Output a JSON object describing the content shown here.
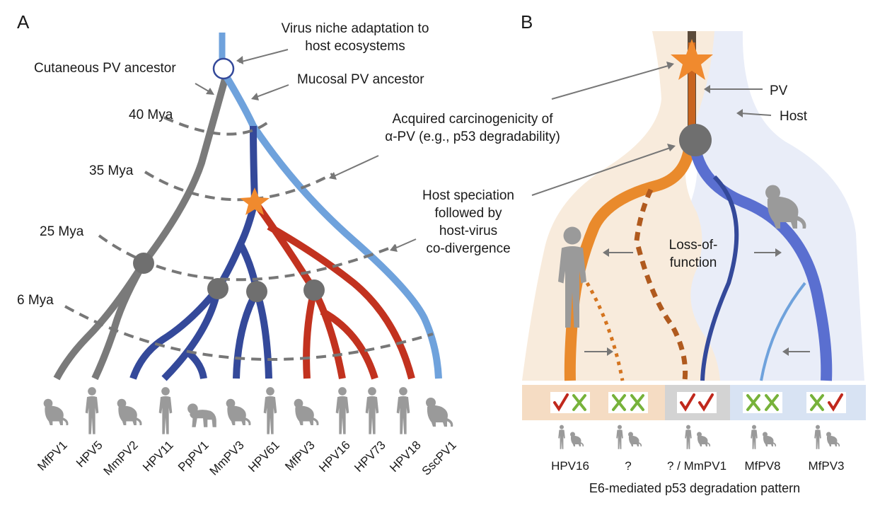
{
  "panels": {
    "a": "A",
    "b": "B"
  },
  "panel_a": {
    "annotations": {
      "virus_niche_line1": "Virus niche adaptation to",
      "virus_niche_line2": "host ecosystems",
      "cutaneous": "Cutaneous PV ancestor",
      "mucosal": "Mucosal PV ancestor",
      "carcino_line1": "Acquired carcinogenicity of",
      "carcino_line2": "α-PV (e.g., p53 degradability)",
      "speciation_line1": "Host speciation",
      "speciation_line2": "followed by",
      "speciation_line3": "host-virus",
      "speciation_line4": "co-divergence"
    },
    "time_labels": [
      "40 Mya",
      "35 Mya",
      "25 Mya",
      "6 Mya"
    ],
    "tips": [
      "MfPV1",
      "HPV5",
      "MmPV2",
      "HPV11",
      "PpPV1",
      "MmPV3",
      "HPV61",
      "MfPV3",
      "HPV16",
      "HPV73",
      "HPV18",
      "SscPV1"
    ],
    "tip_hosts": [
      "monkey",
      "human",
      "monkey",
      "human",
      "ape",
      "monkey",
      "human",
      "monkey",
      "human",
      "human",
      "human",
      "monkey"
    ]
  },
  "panel_b": {
    "labels": {
      "pv": "PV",
      "host": "Host",
      "loss_line1": "Loss-of-",
      "loss_line2": "function"
    },
    "pattern_cells": [
      {
        "human": "check",
        "monkey": "cross",
        "label": "HPV16"
      },
      {
        "human": "cross",
        "monkey": "cross",
        "label": "?"
      },
      {
        "human": "check",
        "monkey": "check",
        "label": "? / MmPV1"
      },
      {
        "human": "cross",
        "monkey": "cross",
        "label": "MfPV8"
      },
      {
        "human": "cross",
        "monkey": "check",
        "label": "MfPV3"
      }
    ],
    "caption": "E6-mediated p53 degradation pattern"
  },
  "colors": {
    "gray_branch": "#7a7a7a",
    "light_blue": "#6fa2dc",
    "dark_blue": "#34499a",
    "red": "#c2321f",
    "orange": "#e98a2c",
    "star": "#f08a2e",
    "node": "#6f6f6f",
    "check": "#c0281c",
    "cross": "#77b23a"
  }
}
